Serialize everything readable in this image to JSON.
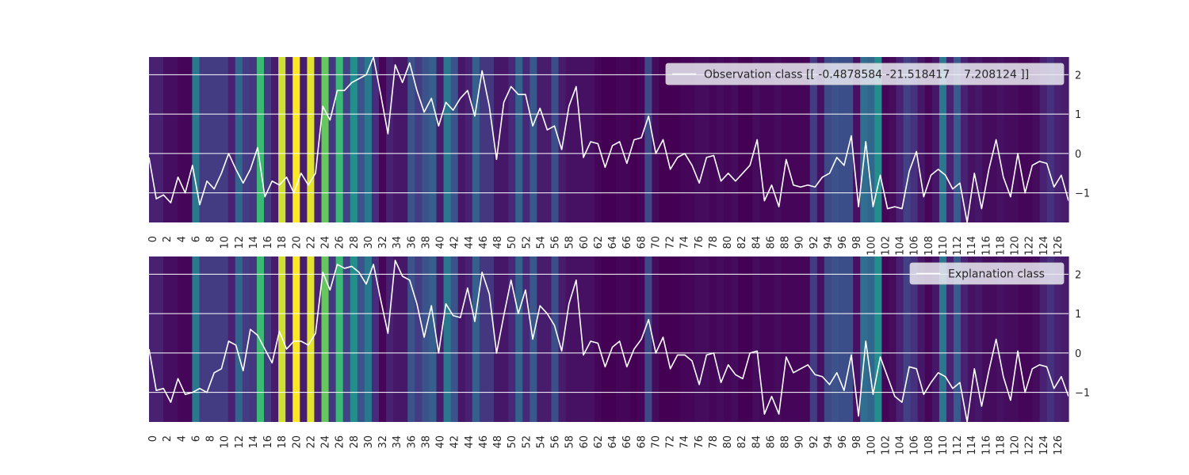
{
  "chart_data": [
    {
      "type": "line",
      "background": "heatmap",
      "legend": "Observation class [[ -0.4878584 -21.518417    7.208124 ]]",
      "legend_placement": "top-right",
      "xlim": [
        0,
        127
      ],
      "ylim": [
        -1.75,
        2.45
      ],
      "yticks": [
        -1,
        0,
        1,
        2
      ],
      "ytick_labels": [
        "−1",
        "0",
        "1",
        "2"
      ],
      "grid": true,
      "heat": [
        0.12,
        0.12,
        0.05,
        0.05,
        0.02,
        0.02,
        0.5,
        0.22,
        0.22,
        0.22,
        0.22,
        0.12,
        0.42,
        0.22,
        0.2,
        0.76,
        0.22,
        0.1,
        0.95,
        0.12,
        1.0,
        0.1,
        0.97,
        0.12,
        0.82,
        0.2,
        0.76,
        0.24,
        0.62,
        0.32,
        0.5,
        0.16,
        0.02,
        0.12,
        0.08,
        0.08,
        0.32,
        0.22,
        0.32,
        0.38,
        0.1,
        0.5,
        0.32,
        0.08,
        0.12,
        0.38,
        0.2,
        0.2,
        0.08,
        0.08,
        0.14,
        0.4,
        0.14,
        0.34,
        0.1,
        0.1,
        0.3,
        0.1,
        0.06,
        0.06,
        0.06,
        0.06,
        0.02,
        0.0,
        0.0,
        0.02,
        0.02,
        0.0,
        0.02,
        0.28,
        0.04,
        0.0,
        0.0,
        0.0,
        0.02,
        0.02,
        0.04,
        0.04,
        0.02,
        0.04,
        0.02,
        0.04,
        0.0,
        0.0,
        0.04,
        0.02,
        0.02,
        0.04,
        0.02,
        0.02,
        0.02,
        0.02,
        0.22,
        0.06,
        0.28,
        0.32,
        0.3,
        0.3,
        0.06,
        0.45,
        0.42,
        0.62,
        0.02,
        0.04,
        0.12,
        0.24,
        0.18,
        0.08,
        0.02,
        0.08,
        0.5,
        0.12,
        0.36,
        0.12,
        0.06,
        0.08,
        0.04,
        0.04,
        0.06,
        0.04,
        0.04,
        0.02,
        0.02,
        0.04,
        0.12,
        0.18,
        0.12,
        0.1
      ],
      "x": [
        0,
        1,
        2,
        3,
        4,
        5,
        6,
        7,
        8,
        9,
        10,
        11,
        12,
        13,
        14,
        15,
        16,
        17,
        18,
        19,
        20,
        21,
        22,
        23,
        24,
        25,
        26,
        27,
        28,
        29,
        30,
        31,
        32,
        33,
        34,
        35,
        36,
        37,
        38,
        39,
        40,
        41,
        42,
        43,
        44,
        45,
        46,
        47,
        48,
        49,
        50,
        51,
        52,
        53,
        54,
        55,
        56,
        57,
        58,
        59,
        60,
        61,
        62,
        63,
        64,
        65,
        66,
        67,
        68,
        69,
        70,
        71,
        72,
        73,
        74,
        75,
        76,
        77,
        78,
        79,
        80,
        81,
        82,
        83,
        84,
        85,
        86,
        87,
        88,
        89,
        90,
        91,
        92,
        93,
        94,
        95,
        96,
        97,
        98,
        99,
        100,
        101,
        102,
        103,
        104,
        105,
        106,
        107,
        108,
        109,
        110,
        111,
        112,
        113,
        114,
        115,
        116,
        117,
        118,
        119,
        120,
        121,
        122,
        123,
        124,
        125,
        126,
        127
      ],
      "values": [
        -0.1,
        -1.15,
        -1.05,
        -1.25,
        -0.6,
        -1.0,
        -0.3,
        -1.3,
        -0.7,
        -0.9,
        -0.5,
        0.0,
        -0.4,
        -0.75,
        -0.4,
        0.15,
        -1.1,
        -0.7,
        -0.8,
        -0.6,
        -1.0,
        -0.5,
        -0.8,
        -0.5,
        1.2,
        0.85,
        1.6,
        1.6,
        1.8,
        1.9,
        2.0,
        2.45,
        1.5,
        0.5,
        2.25,
        1.8,
        2.3,
        1.6,
        1.05,
        1.4,
        0.7,
        1.3,
        1.1,
        1.4,
        1.6,
        0.95,
        2.1,
        1.2,
        -0.15,
        1.3,
        1.7,
        1.5,
        1.5,
        0.7,
        1.15,
        0.6,
        0.7,
        0.1,
        1.2,
        1.7,
        -0.1,
        0.3,
        0.25,
        -0.35,
        0.2,
        0.3,
        -0.25,
        0.35,
        0.4,
        0.95,
        0.0,
        0.35,
        -0.4,
        -0.1,
        0.0,
        -0.3,
        -0.75,
        -0.1,
        -0.05,
        -0.7,
        -0.5,
        -0.7,
        -0.5,
        -0.3,
        0.35,
        -1.2,
        -0.8,
        -1.35,
        -0.15,
        -0.8,
        -0.85,
        -0.8,
        -0.85,
        -0.6,
        -0.5,
        -0.1,
        -0.3,
        0.45,
        -1.35,
        0.3,
        -1.35,
        -0.55,
        -1.4,
        -1.35,
        -1.4,
        -0.45,
        0.05,
        -1.1,
        -0.55,
        -0.4,
        -0.55,
        -0.9,
        -0.75,
        -1.75,
        -0.5,
        -1.4,
        -0.4,
        0.35,
        -0.6,
        -1.1,
        0.0,
        -1.0,
        -0.3,
        -0.2,
        -0.25,
        -0.85,
        -0.55,
        -1.2
      ]
    },
    {
      "type": "line",
      "background": "heatmap",
      "legend": "Explanation class",
      "legend_placement": "top-right",
      "xlim": [
        0,
        127
      ],
      "ylim": [
        -1.75,
        2.45
      ],
      "yticks": [
        -1,
        0,
        1,
        2
      ],
      "ytick_labels": [
        "−1",
        "0",
        "1",
        "2"
      ],
      "grid": true,
      "heat": [
        0.12,
        0.12,
        0.05,
        0.05,
        0.02,
        0.02,
        0.5,
        0.22,
        0.22,
        0.22,
        0.22,
        0.12,
        0.42,
        0.22,
        0.2,
        0.76,
        0.22,
        0.1,
        0.95,
        0.12,
        1.0,
        0.1,
        0.97,
        0.12,
        0.82,
        0.2,
        0.76,
        0.24,
        0.62,
        0.32,
        0.5,
        0.16,
        0.02,
        0.12,
        0.08,
        0.08,
        0.32,
        0.22,
        0.32,
        0.38,
        0.1,
        0.5,
        0.32,
        0.08,
        0.12,
        0.38,
        0.2,
        0.2,
        0.08,
        0.08,
        0.14,
        0.4,
        0.14,
        0.34,
        0.1,
        0.1,
        0.3,
        0.1,
        0.06,
        0.06,
        0.06,
        0.06,
        0.02,
        0.0,
        0.0,
        0.02,
        0.02,
        0.0,
        0.02,
        0.28,
        0.04,
        0.0,
        0.0,
        0.0,
        0.02,
        0.02,
        0.04,
        0.04,
        0.02,
        0.04,
        0.02,
        0.04,
        0.0,
        0.0,
        0.04,
        0.02,
        0.02,
        0.04,
        0.02,
        0.02,
        0.02,
        0.02,
        0.22,
        0.06,
        0.28,
        0.32,
        0.3,
        0.3,
        0.06,
        0.45,
        0.42,
        0.62,
        0.02,
        0.04,
        0.12,
        0.24,
        0.18,
        0.08,
        0.02,
        0.08,
        0.5,
        0.12,
        0.36,
        0.12,
        0.06,
        0.08,
        0.04,
        0.04,
        0.06,
        0.04,
        0.04,
        0.02,
        0.02,
        0.04,
        0.12,
        0.18,
        0.12,
        0.1
      ],
      "x": [
        0,
        1,
        2,
        3,
        4,
        5,
        6,
        7,
        8,
        9,
        10,
        11,
        12,
        13,
        14,
        15,
        16,
        17,
        18,
        19,
        20,
        21,
        22,
        23,
        24,
        25,
        26,
        27,
        28,
        29,
        30,
        31,
        32,
        33,
        34,
        35,
        36,
        37,
        38,
        39,
        40,
        41,
        42,
        43,
        44,
        45,
        46,
        47,
        48,
        49,
        50,
        51,
        52,
        53,
        54,
        55,
        56,
        57,
        58,
        59,
        60,
        61,
        62,
        63,
        64,
        65,
        66,
        67,
        68,
        69,
        70,
        71,
        72,
        73,
        74,
        75,
        76,
        77,
        78,
        79,
        80,
        81,
        82,
        83,
        84,
        85,
        86,
        87,
        88,
        89,
        90,
        91,
        92,
        93,
        94,
        95,
        96,
        97,
        98,
        99,
        100,
        101,
        102,
        103,
        104,
        105,
        106,
        107,
        108,
        109,
        110,
        111,
        112,
        113,
        114,
        115,
        116,
        117,
        118,
        119,
        120,
        121,
        122,
        123,
        124,
        125,
        126,
        127
      ],
      "values": [
        0.1,
        -0.95,
        -0.9,
        -1.25,
        -0.65,
        -1.05,
        -1.0,
        -0.9,
        -1.0,
        -0.5,
        -0.4,
        0.3,
        0.2,
        -0.45,
        0.6,
        0.45,
        0.1,
        -0.25,
        0.55,
        0.1,
        0.3,
        0.3,
        0.2,
        0.5,
        2.05,
        1.6,
        2.25,
        2.15,
        2.2,
        2.05,
        1.75,
        2.25,
        1.35,
        0.5,
        2.35,
        1.95,
        1.85,
        1.25,
        0.4,
        1.2,
        0.0,
        1.25,
        0.95,
        0.9,
        1.65,
        0.8,
        2.05,
        1.5,
        0.0,
        0.95,
        1.85,
        1.0,
        1.6,
        0.35,
        1.2,
        1.0,
        0.7,
        0.05,
        1.25,
        1.85,
        -0.05,
        0.3,
        0.25,
        -0.35,
        0.15,
        0.3,
        -0.35,
        0.1,
        0.35,
        0.85,
        0.0,
        0.4,
        -0.4,
        -0.05,
        -0.05,
        -0.2,
        -0.8,
        -0.05,
        0.0,
        -0.75,
        -0.3,
        -0.55,
        -0.65,
        0.0,
        0.05,
        -1.55,
        -1.1,
        -1.55,
        -0.1,
        -0.5,
        -0.4,
        -0.3,
        -0.55,
        -0.6,
        -0.8,
        -0.5,
        -0.95,
        -0.05,
        -1.6,
        0.3,
        -1.05,
        -0.1,
        -0.6,
        -1.1,
        -1.25,
        -0.35,
        -0.4,
        -1.05,
        -0.75,
        -0.5,
        -0.6,
        -0.9,
        -0.75,
        -1.75,
        -0.4,
        -1.35,
        -0.45,
        0.35,
        -0.6,
        -1.2,
        0.05,
        -1.0,
        -0.4,
        -0.3,
        -0.35,
        -0.9,
        -0.6,
        -1.1
      ]
    }
  ]
}
